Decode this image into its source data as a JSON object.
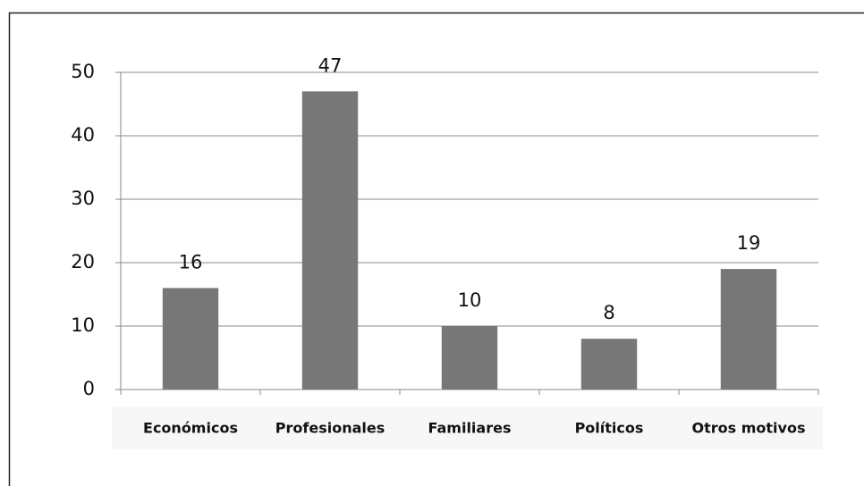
{
  "chart_data": {
    "type": "bar",
    "categories": [
      "Económicos",
      "Profesionales",
      "Familiares",
      "Políticos",
      "Otros motivos"
    ],
    "values": [
      16,
      47,
      10,
      8,
      19
    ],
    "color": "#777777",
    "ylim": [
      0,
      50
    ],
    "yticks": [
      0,
      10,
      20,
      30,
      40,
      50
    ],
    "grid": true
  }
}
